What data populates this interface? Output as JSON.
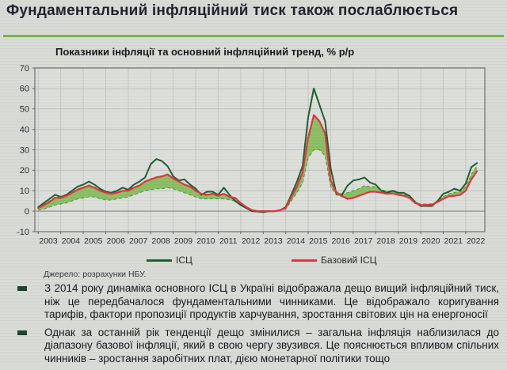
{
  "slide": {
    "title": "Фундаментальний інфляційний тиск також послаблюється",
    "accent_color": "#79b64a"
  },
  "chart": {
    "title": "Показники інфляції та основний інфляційний тренд, % р/р",
    "source": "Джерело: розрахунки НБУ."
  },
  "chart_data": {
    "type": "line",
    "title": "Показники інфляції та основний інфляційний тренд, % р/р",
    "x_start": 2003,
    "x_step": 0.25,
    "xticks": [
      2003,
      2004,
      2005,
      2006,
      2007,
      2008,
      2009,
      2010,
      2011,
      2012,
      2013,
      2014,
      2015,
      2016,
      2017,
      2018,
      2019,
      2020,
      2021,
      2022
    ],
    "ylim": [
      -10,
      70
    ],
    "yticks": [
      70,
      60,
      50,
      40,
      30,
      20,
      10,
      0,
      -10
    ],
    "grid": true,
    "legend_position": "bottom",
    "series": [
      {
        "name": "ІСЦ",
        "color": "#1d5c2f",
        "values": [
          2,
          4,
          6,
          8,
          7,
          8,
          10,
          12,
          13,
          14.5,
          13,
          11,
          9.5,
          9,
          10,
          11.5,
          10.5,
          13,
          14.5,
          16.5,
          23,
          25.5,
          24.5,
          22,
          17,
          15,
          15.5,
          13,
          11,
          8,
          9.5,
          9.5,
          8,
          11.5,
          8,
          5,
          3,
          1.5,
          0,
          -0.2,
          -0.5,
          0,
          0,
          0.5,
          2,
          8,
          14.5,
          22,
          46,
          60,
          52,
          44,
          21,
          8.5,
          8,
          12.5,
          15,
          15.5,
          16.5,
          14,
          13,
          10,
          9,
          10,
          9,
          9,
          7.5,
          4.5,
          2.5,
          2.5,
          2.5,
          5,
          8.5,
          9.5,
          11,
          10,
          13.5,
          21.5,
          23.5
        ]
      },
      {
        "name": "Базовий ІСЦ",
        "color": "#e03340",
        "values": [
          1.5,
          3,
          4.5,
          6.5,
          6.5,
          7.5,
          9,
          10.5,
          11.5,
          12.5,
          11.5,
          10,
          9,
          8.5,
          9,
          10,
          10,
          11.5,
          12.5,
          14.5,
          15.5,
          16.5,
          17,
          18,
          16,
          14.5,
          13,
          12,
          10,
          8.5,
          8,
          8.5,
          7.5,
          8.5,
          7,
          6.5,
          4,
          2,
          0.5,
          0,
          0,
          0,
          0,
          0.5,
          1.5,
          7,
          12,
          19,
          36,
          47,
          44,
          38,
          15,
          9,
          7.5,
          6,
          6.5,
          7.5,
          8.5,
          9.5,
          9.5,
          9,
          8.5,
          8.7,
          8,
          7.5,
          6.5,
          4,
          3,
          3,
          3.2,
          4.5,
          6,
          7.3,
          7.5,
          8,
          10,
          15.5,
          19.5
        ]
      }
    ],
    "band": {
      "fill": "#7db94e",
      "fill_opacity": 0.85,
      "edge_color": "#4f9a38",
      "high": [
        1.8,
        3.3,
        5,
        6.8,
        6.8,
        7.8,
        9.2,
        10.8,
        11.8,
        12.8,
        11.8,
        10.2,
        9.2,
        8.8,
        9.2,
        10.2,
        10.2,
        11.8,
        12.8,
        14.8,
        15.8,
        16.8,
        17.2,
        18,
        16,
        14.5,
        13.2,
        12.2,
        10.2,
        8.7,
        8.2,
        8.7,
        7.7,
        8.7,
        7.2,
        6.7,
        4.2,
        2.2,
        0.7,
        0.2,
        0.2,
        0.2,
        0.2,
        0.7,
        1.8,
        7.2,
        12.2,
        19,
        36,
        47,
        44,
        38,
        15,
        9.5,
        8.5,
        9,
        10,
        11,
        12.5,
        12,
        12,
        10.5,
        9.8,
        9.8,
        9,
        8.2,
        7.2,
        4.5,
        3.5,
        3.5,
        3.6,
        5,
        7,
        8.5,
        9.2,
        9.5,
        12,
        18,
        22
      ],
      "low": [
        0.5,
        1,
        2,
        3,
        3.5,
        4,
        5,
        6,
        6.5,
        7,
        7,
        6,
        5.5,
        5.5,
        6,
        6.5,
        7,
        8,
        9,
        10,
        10.5,
        11,
        11,
        11.5,
        11,
        10,
        9,
        8,
        7,
        6,
        6,
        6,
        6,
        6,
        5.5,
        5,
        3,
        1.5,
        0,
        -0.3,
        -0.3,
        -0.2,
        0,
        0.3,
        1,
        5,
        9,
        14,
        26,
        30,
        30,
        27,
        12,
        8,
        7,
        6,
        6.5,
        7.5,
        8.5,
        9.5,
        9.5,
        9,
        8.5,
        8.7,
        8,
        7.5,
        6.5,
        4,
        3,
        3,
        3.2,
        4.5,
        6,
        7.3,
        7.5,
        8,
        10,
        15.5,
        19.5
      ]
    }
  },
  "bullets": [
    {
      "text": "З 2014 року динаміка основного ІСЦ в Україні відображала дещо вищий інфляційний тиск, ніж це передбачалося фундаментальними чинниками. Це відображало коригування тарифів, фактори пропозиції продуктів харчування, зростання світових цін на енергоносії"
    },
    {
      "text": "Однак за останній рік тенденції дещо змінилися – загальна інфляція наблизилася до діапазону базової інфляції, який в свою чергу звузився. Це пояснюється впливом спільних чинників – зростання заробітних плат, дією монетарної політики тощо"
    }
  ]
}
